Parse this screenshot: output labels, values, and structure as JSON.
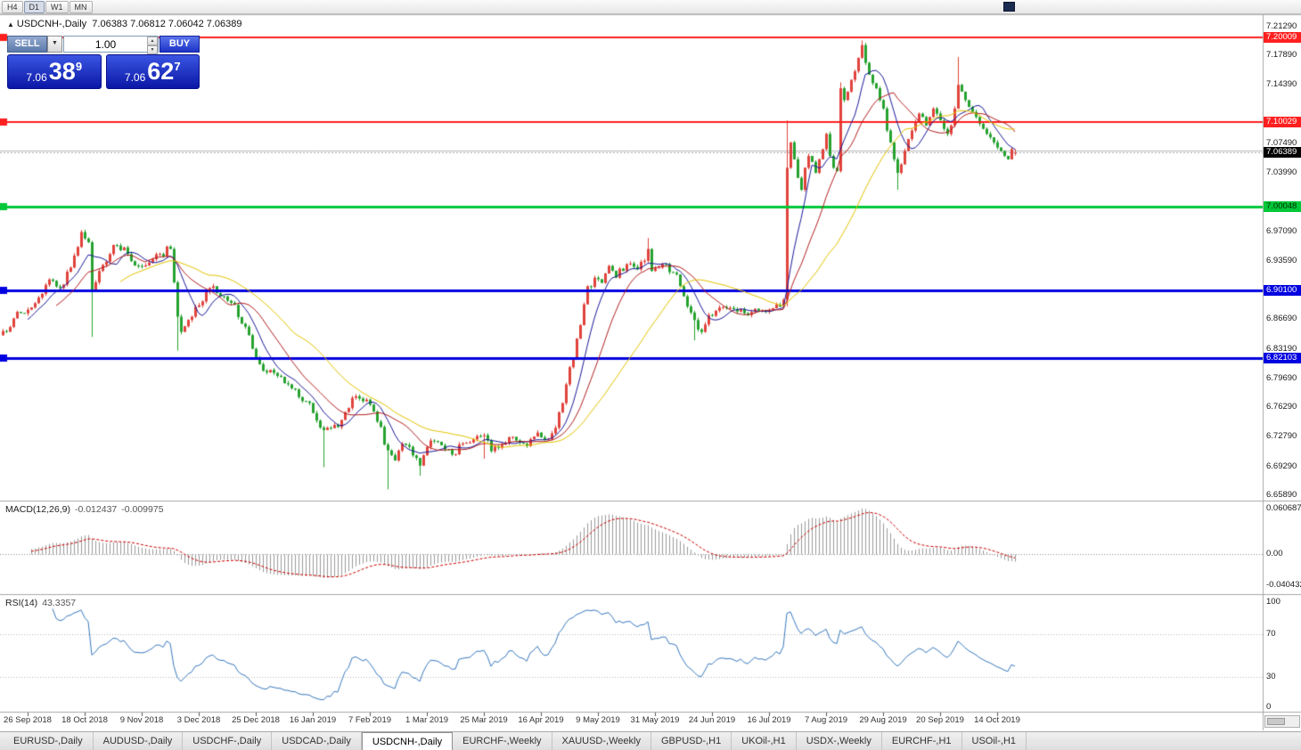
{
  "toolbar": {
    "periods": [
      "H4",
      "D1",
      "W1",
      "MN"
    ],
    "active_period": "D1"
  },
  "chart_header": {
    "symbol": "USDCNH-,Daily",
    "ohlc": "7.06383 7.06812 7.06042 7.06389"
  },
  "trade_widget": {
    "sell_label": "SELL",
    "buy_label": "BUY",
    "volume": "1.00",
    "sell_price": {
      "prefix": "7.06",
      "big": "38",
      "sup": "9"
    },
    "buy_price": {
      "prefix": "7.06",
      "big": "62",
      "sup": "7"
    }
  },
  "price_axis": {
    "ticks": [
      {
        "label": "7.21290",
        "price": 7.2129
      },
      {
        "label": "7.17890",
        "price": 7.1789
      },
      {
        "label": "7.14390",
        "price": 7.1439
      },
      {
        "label": "7.07490",
        "price": 7.0749
      },
      {
        "label": "7.03990",
        "price": 7.0399
      },
      {
        "label": "6.97090",
        "price": 6.9709
      },
      {
        "label": "6.93590",
        "price": 6.9359
      },
      {
        "label": "6.86690",
        "price": 6.8669
      },
      {
        "label": "6.83190",
        "price": 6.8319
      },
      {
        "label": "6.79690",
        "price": 6.7969
      },
      {
        "label": "6.76290",
        "price": 6.7629
      },
      {
        "label": "6.72790",
        "price": 6.7279
      },
      {
        "label": "6.69290",
        "price": 6.6929
      },
      {
        "label": "6.65890",
        "price": 6.6589
      }
    ],
    "tags": [
      {
        "label": "7.20009",
        "price": 7.20009,
        "bg": "#ff1f1f",
        "fg": "#ffffff",
        "name": "resistance-line-tag-7-20009"
      },
      {
        "label": "7.10029",
        "price": 7.10029,
        "bg": "#ff1f1f",
        "fg": "#ffffff",
        "name": "resistance-line-tag-7-10029"
      },
      {
        "label": "7.06389",
        "price": 7.06389,
        "bg": "#000000",
        "fg": "#ffffff",
        "name": "bid-price-tag"
      },
      {
        "label": "7.00048",
        "price": 7.00048,
        "bg": "#00c838",
        "fg": "#002b00",
        "name": "level-line-tag-7-00048"
      },
      {
        "label": "6.90100",
        "price": 6.901,
        "bg": "#0000e0",
        "fg": "#ffffff",
        "name": "support-line-tag-6-90100"
      },
      {
        "label": "6.82103",
        "price": 6.82103,
        "bg": "#0000e0",
        "fg": "#ffffff",
        "name": "support-line-tag-6-82103"
      }
    ]
  },
  "time_axis": {
    "first_candle_index": 7,
    "candle_step": 16,
    "labels": [
      "26 Sep 2018",
      "18 Oct 2018",
      "9 Nov 2018",
      "3 Dec 2018",
      "25 Dec 2018",
      "16 Jan 2019",
      "7 Feb 2019",
      "1 Mar 2019",
      "25 Mar 2019",
      "16 Apr 2019",
      "9 May 2019",
      "31 May 2019",
      "24 Jun 2019",
      "16 Jul 2019",
      "7 Aug 2019",
      "29 Aug 2019",
      "20 Sep 2019",
      "14 Oct 2019"
    ]
  },
  "panes": {
    "macd": {
      "title": "MACD(12,26,9)",
      "value_main": "-0.012437",
      "value_signal": "-0.009975",
      "axis": [
        "0.060687",
        "0.00",
        "-0.040432"
      ]
    },
    "rsi": {
      "title": "RSI(14)",
      "value": "43.3357",
      "axis": [
        "100",
        "70",
        "30",
        "0"
      ]
    }
  },
  "tabs": {
    "items": [
      "EURUSD-,Daily",
      "AUDUSD-,Daily",
      "USDCHF-,Daily",
      "USDCAD-,Daily",
      "USDCNH-,Daily",
      "EURCHF-,Weekly",
      "XAUUSD-,Weekly",
      "GBPUSD-,H1",
      "UKOil-,H1",
      "USDX-,Weekly",
      "EURCHF-,H1",
      "USOil-,H1"
    ],
    "active": "USDCNH-,Daily"
  },
  "chart_data": {
    "type": "candlestick",
    "symbol": "USDCNH",
    "timeframe": "Daily",
    "current_bar": {
      "open": 7.06383,
      "high": 7.06812,
      "low": 7.06042,
      "close": 7.06389
    },
    "bid": 7.06389,
    "ask": 7.06627,
    "ylim": [
      6.6526,
      7.2264
    ],
    "candle_count": 285,
    "candle_colors": {
      "up": "#e0433c",
      "down": "#26a22f"
    },
    "close_anchors": [
      [
        0,
        6.853
      ],
      [
        3,
        6.868
      ],
      [
        6,
        6.874
      ],
      [
        9,
        6.886
      ],
      [
        13,
        6.914
      ],
      [
        16,
        6.904
      ],
      [
        19,
        6.928
      ],
      [
        22,
        6.97
      ],
      [
        24,
        6.958
      ],
      [
        25,
        6.902
      ],
      [
        27,
        6.924
      ],
      [
        30,
        6.944
      ],
      [
        32,
        6.954
      ],
      [
        35,
        6.944
      ],
      [
        38,
        6.93
      ],
      [
        41,
        6.934
      ],
      [
        44,
        6.944
      ],
      [
        47,
        6.95
      ],
      [
        49,
        6.87
      ],
      [
        50,
        6.852
      ],
      [
        53,
        6.87
      ],
      [
        56,
        6.888
      ],
      [
        59,
        6.906
      ],
      [
        62,
        6.894
      ],
      [
        65,
        6.884
      ],
      [
        68,
        6.858
      ],
      [
        70,
        6.832
      ],
      [
        73,
        6.806
      ],
      [
        77,
        6.8
      ],
      [
        80,
        6.79
      ],
      [
        82,
        6.784
      ],
      [
        85,
        6.77
      ],
      [
        87,
        6.756
      ],
      [
        90,
        6.736
      ],
      [
        93,
        6.742
      ],
      [
        95,
        6.748
      ],
      [
        97,
        6.762
      ],
      [
        99,
        6.776
      ],
      [
        101,
        6.77
      ],
      [
        103,
        6.766
      ],
      [
        105,
        6.746
      ],
      [
        108,
        6.712
      ],
      [
        110,
        6.7
      ],
      [
        112,
        6.72
      ],
      [
        115,
        6.706
      ],
      [
        117,
        6.694
      ],
      [
        119,
        6.716
      ],
      [
        122,
        6.722
      ],
      [
        124,
        6.713
      ],
      [
        126,
        6.707
      ],
      [
        128,
        6.719
      ],
      [
        130,
        6.721
      ],
      [
        132,
        6.725
      ],
      [
        135,
        6.73
      ],
      [
        137,
        6.711
      ],
      [
        139,
        6.715
      ],
      [
        141,
        6.721
      ],
      [
        143,
        6.728
      ],
      [
        145,
        6.721
      ],
      [
        147,
        6.717
      ],
      [
        150,
        6.733
      ],
      [
        152,
        6.724
      ],
      [
        154,
        6.732
      ],
      [
        156,
        6.757
      ],
      [
        158,
        6.79
      ],
      [
        160,
        6.82
      ],
      [
        162,
        6.86
      ],
      [
        164,
        6.906
      ],
      [
        166,
        6.916
      ],
      [
        168,
        6.91
      ],
      [
        170,
        6.93
      ],
      [
        172,
        6.916
      ],
      [
        175,
        6.932
      ],
      [
        178,
        6.926
      ],
      [
        180,
        6.936
      ],
      [
        181,
        6.95
      ],
      [
        182,
        6.924
      ],
      [
        184,
        6.928
      ],
      [
        186,
        6.932
      ],
      [
        188,
        6.922
      ],
      [
        190,
        6.906
      ],
      [
        192,
        6.882
      ],
      [
        194,
        6.866
      ],
      [
        196,
        6.852
      ],
      [
        198,
        6.872
      ],
      [
        200,
        6.877
      ],
      [
        203,
        6.88
      ],
      [
        206,
        6.876
      ],
      [
        209,
        6.872
      ],
      [
        212,
        6.877
      ],
      [
        215,
        6.878
      ],
      [
        218,
        6.882
      ],
      [
        219,
        6.89
      ],
      [
        220,
        7.046
      ],
      [
        221,
        7.076
      ],
      [
        222,
        7.056
      ],
      [
        223,
        7.034
      ],
      [
        224,
        7.02
      ],
      [
        225,
        7.046
      ],
      [
        226,
        7.06
      ],
      [
        227,
        7.053
      ],
      [
        228,
        7.04
      ],
      [
        229,
        7.056
      ],
      [
        230,
        7.068
      ],
      [
        231,
        7.086
      ],
      [
        232,
        7.06
      ],
      [
        233,
        7.046
      ],
      [
        234,
        7.042
      ],
      [
        235,
        7.14
      ],
      [
        236,
        7.126
      ],
      [
        237,
        7.136
      ],
      [
        238,
        7.15
      ],
      [
        239,
        7.16
      ],
      [
        240,
        7.176
      ],
      [
        241,
        7.191
      ],
      [
        242,
        7.17
      ],
      [
        243,
        7.156
      ],
      [
        244,
        7.146
      ],
      [
        245,
        7.14
      ],
      [
        246,
        7.126
      ],
      [
        247,
        7.116
      ],
      [
        248,
        7.09
      ],
      [
        249,
        7.076
      ],
      [
        250,
        7.056
      ],
      [
        251,
        7.04
      ],
      [
        252,
        7.05
      ],
      [
        253,
        7.066
      ],
      [
        254,
        7.08
      ],
      [
        255,
        7.09
      ],
      [
        256,
        7.1
      ],
      [
        257,
        7.11
      ],
      [
        258,
        7.106
      ],
      [
        259,
        7.096
      ],
      [
        260,
        7.106
      ],
      [
        261,
        7.116
      ],
      [
        262,
        7.11
      ],
      [
        263,
        7.102
      ],
      [
        264,
        7.092
      ],
      [
        265,
        7.086
      ],
      [
        266,
        7.096
      ],
      [
        267,
        7.116
      ],
      [
        268,
        7.144
      ],
      [
        269,
        7.136
      ],
      [
        270,
        7.126
      ],
      [
        271,
        7.118
      ],
      [
        272,
        7.112
      ],
      [
        273,
        7.106
      ],
      [
        274,
        7.098
      ],
      [
        275,
        7.092
      ],
      [
        276,
        7.086
      ],
      [
        277,
        7.082
      ],
      [
        278,
        7.076
      ],
      [
        279,
        7.07
      ],
      [
        280,
        7.066
      ],
      [
        281,
        7.06
      ],
      [
        282,
        7.056
      ],
      [
        283,
        7.068
      ],
      [
        284,
        7.06389
      ]
    ],
    "wick_overrides": [
      {
        "i": 25,
        "low": 6.846
      },
      {
        "i": 49,
        "low": 6.83
      },
      {
        "i": 90,
        "low": 6.692
      },
      {
        "i": 108,
        "low": 6.666
      },
      {
        "i": 117,
        "low": 6.682
      },
      {
        "i": 135,
        "low": 6.702
      },
      {
        "i": 181,
        "high": 6.963
      },
      {
        "i": 194,
        "low": 6.842
      },
      {
        "i": 220,
        "low": 6.882,
        "high": 7.102
      },
      {
        "i": 235,
        "high": 7.147
      },
      {
        "i": 241,
        "high": 7.1965
      },
      {
        "i": 251,
        "low": 7.02
      },
      {
        "i": 268,
        "high": 7.177
      }
    ],
    "horizontal_levels": [
      {
        "price": 7.20009,
        "color": "#ff1f1f",
        "width": 2
      },
      {
        "price": 7.10029,
        "color": "#ff1f1f",
        "width": 2
      },
      {
        "price": 7.00048,
        "color": "#00c838",
        "width": 3
      },
      {
        "price": 6.901,
        "color": "#0000e0",
        "width": 3
      },
      {
        "price": 6.82103,
        "color": "#0000e0",
        "width": 3
      }
    ],
    "moving_averages": [
      {
        "period": 8,
        "color": "#1a1a9a"
      },
      {
        "period": 16,
        "color": "#b22020"
      },
      {
        "period": 34,
        "color": "#e3c400"
      }
    ],
    "indicators": {
      "macd": {
        "fast": 12,
        "slow": 26,
        "signal": 9,
        "value": -0.012437,
        "signal_value": -0.009975,
        "hist_color": "#9a9a9a",
        "signal_color": "#cc0000",
        "axis_max": 0.060687,
        "axis_min": -0.040432
      },
      "rsi": {
        "period": 14,
        "value": 43.3357,
        "color": "#3a7abf",
        "levels": [
          70,
          30
        ]
      }
    },
    "synth": {
      "seed": 7,
      "noise": 0.0028
    }
  }
}
